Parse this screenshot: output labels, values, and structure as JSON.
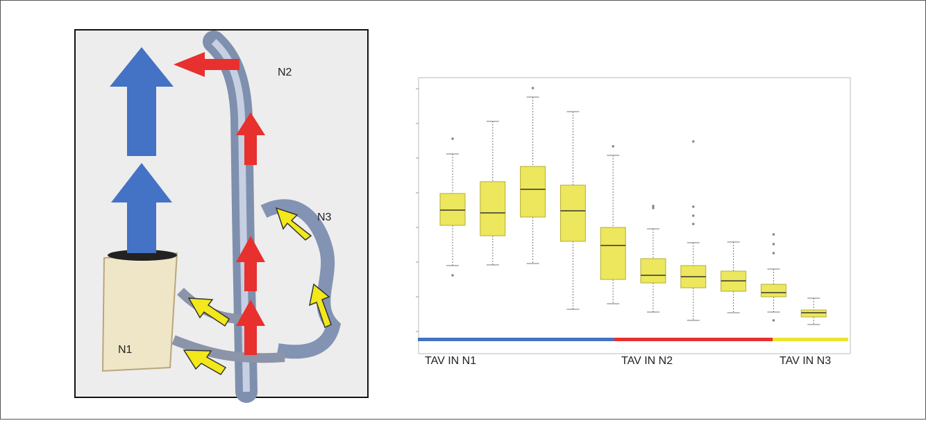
{
  "illustration": {
    "labels": [
      "N2",
      "N3",
      "N1"
    ]
  },
  "chart_data": {
    "type": "box",
    "categories": [
      null,
      null,
      null,
      null,
      null,
      null,
      null,
      null,
      null,
      null
    ],
    "ylim": [
      0.36,
      8.32
    ],
    "yticks": [
      1,
      2,
      3,
      4,
      5,
      6,
      7,
      8
    ],
    "color": "#ece75c",
    "boxes": [
      {
        "whisker_low": 2.9,
        "q1": 4.06,
        "median": 4.5,
        "q3": 4.98,
        "whisker_high": 6.12,
        "outliers": [
          6.56,
          2.62
        ]
      },
      {
        "whisker_low": 2.92,
        "q1": 3.76,
        "median": 4.42,
        "q3": 5.32,
        "whisker_high": 7.06,
        "outliers": []
      },
      {
        "whisker_low": 2.96,
        "q1": 4.3,
        "median": 5.1,
        "q3": 5.76,
        "whisker_high": 7.76,
        "outliers": [
          8.02
        ]
      },
      {
        "whisker_low": 1.64,
        "q1": 3.6,
        "median": 4.48,
        "q3": 5.22,
        "whisker_high": 7.34,
        "outliers": []
      },
      {
        "whisker_low": 1.8,
        "q1": 2.5,
        "median": 3.48,
        "q3": 4.0,
        "whisker_high": 6.08,
        "outliers": [
          6.34
        ]
      },
      {
        "whisker_low": 1.56,
        "q1": 2.4,
        "median": 2.62,
        "q3": 3.1,
        "whisker_high": 3.96,
        "outliers": [
          4.62,
          4.56
        ]
      },
      {
        "whisker_low": 1.32,
        "q1": 2.26,
        "median": 2.58,
        "q3": 2.9,
        "whisker_high": 3.56,
        "outliers": [
          6.48,
          4.6,
          4.34,
          4.1
        ]
      },
      {
        "whisker_low": 1.54,
        "q1": 2.16,
        "median": 2.46,
        "q3": 2.74,
        "whisker_high": 3.58,
        "outliers": []
      },
      {
        "whisker_low": 1.56,
        "q1": 2.0,
        "median": 2.12,
        "q3": 2.36,
        "whisker_high": 2.8,
        "outliers": [
          3.8,
          3.52,
          3.26,
          1.32
        ]
      },
      {
        "whisker_low": 1.2,
        "q1": 1.42,
        "median": 1.54,
        "q3": 1.62,
        "whisker_high": 1.96,
        "outliers": []
      }
    ],
    "groups": [
      {
        "label": "TAV IN N1",
        "color": "#4472c4"
      },
      {
        "label": "TAV IN N2",
        "color": "#e8302e"
      },
      {
        "label": "TAV IN N3",
        "color": "#ece42c"
      }
    ]
  }
}
